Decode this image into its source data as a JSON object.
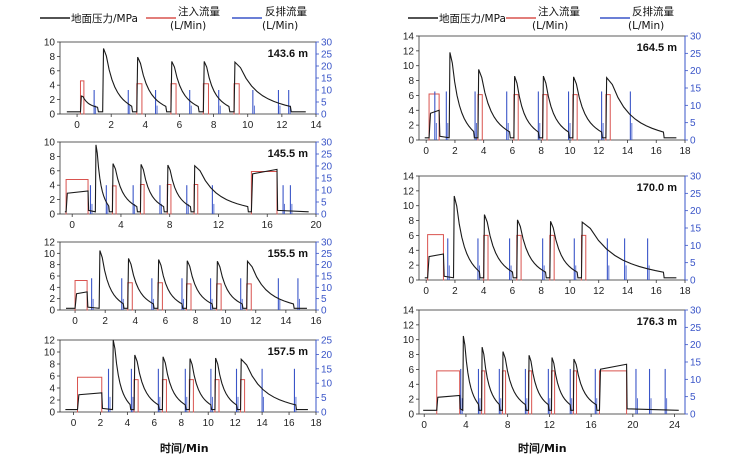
{
  "legend": {
    "pressure": "地面压力/MPa",
    "injection_line1": "注入流量",
    "injection_line2": "(L/Min)",
    "backflow_line1": "反排流量",
    "backflow_line2": "(L/Min)"
  },
  "colors": {
    "pressure": "#1a1a1a",
    "injection": "#d9534f",
    "backflow": "#3a55c8"
  },
  "xlabel": "时间/Min",
  "chart_data": [
    {
      "type": "line",
      "label": "143.6 m",
      "xlim": [
        -1,
        14
      ],
      "xticks": [
        0,
        2,
        4,
        6,
        8,
        10,
        12,
        14
      ],
      "ylim_left": [
        0,
        10
      ],
      "yticks_left": [
        0,
        2,
        4,
        6,
        8,
        10
      ],
      "ylim_right": [
        0,
        30
      ],
      "yticks_right": [
        0,
        5,
        10,
        15,
        20,
        25,
        30
      ],
      "pulses": [
        [
          0.2,
          0.4,
          2.5,
          4.6,
          14
        ],
        [
          1.5,
          1.8,
          9.1,
          0,
          0
        ],
        [
          3.5,
          3.8,
          7.9,
          4.2,
          13
        ],
        [
          5.5,
          5.8,
          7.3,
          4.2,
          13
        ],
        [
          7.4,
          7.7,
          7.3,
          4.2,
          13
        ],
        [
          9.2,
          9.5,
          7.2,
          4.2,
          13
        ]
      ],
      "base_pressure": 0.3,
      "flush": [
        1.0,
        3.0,
        4.6,
        6.6,
        8.3,
        10.3,
        11.8,
        12.4
      ],
      "flush_h": 10
    },
    {
      "type": "line",
      "label": "145.5 m",
      "xlim": [
        -1,
        20
      ],
      "xticks": [
        0,
        4,
        8,
        12,
        16,
        20
      ],
      "ylim_left": [
        0,
        10
      ],
      "yticks_left": [
        0,
        2,
        4,
        6,
        8,
        10
      ],
      "ylim_right": [
        0,
        30
      ],
      "yticks_right": [
        0,
        5,
        10,
        15,
        20,
        25,
        30
      ],
      "pulses": [
        [
          -0.5,
          1.3,
          3.2,
          4.8,
          14
        ],
        [
          1.9,
          2.2,
          9.6,
          0,
          0
        ],
        [
          3.3,
          3.6,
          7.0,
          3.9,
          12
        ],
        [
          5.6,
          5.9,
          6.9,
          4.1,
          12
        ],
        [
          7.8,
          8.1,
          6.8,
          4.1,
          12
        ],
        [
          10.0,
          10.3,
          6.7,
          4.1,
          12
        ],
        [
          14.7,
          16.8,
          6.2,
          5.9,
          18
        ]
      ],
      "base_pressure": 0.3,
      "flush": [
        1.5,
        2.8,
        5.0,
        7.2,
        9.4,
        11.5,
        17.3,
        17.9
      ],
      "flush_h": 12
    },
    {
      "type": "line",
      "label": "155.5 m",
      "xlim": [
        -1,
        16
      ],
      "xticks": [
        0,
        2,
        4,
        6,
        8,
        10,
        12,
        14,
        16
      ],
      "ylim_left": [
        0,
        12
      ],
      "yticks_left": [
        0,
        2,
        4,
        6,
        8,
        10,
        12
      ],
      "ylim_right": [
        0,
        30
      ],
      "yticks_right": [
        0,
        5,
        10,
        15,
        20,
        25,
        30
      ],
      "pulses": [
        [
          0.0,
          0.8,
          3.2,
          5.2,
          14
        ],
        [
          1.6,
          1.9,
          10.5,
          0,
          0
        ],
        [
          3.5,
          3.8,
          9.1,
          4.8,
          13
        ],
        [
          5.5,
          5.8,
          8.9,
          4.8,
          13
        ],
        [
          7.4,
          7.7,
          8.7,
          4.6,
          13
        ],
        [
          9.4,
          9.7,
          8.6,
          4.6,
          13
        ],
        [
          11.4,
          11.7,
          8.6,
          4.6,
          13
        ]
      ],
      "base_pressure": 0.3,
      "flush": [
        1.1,
        3.1,
        5.1,
        7.1,
        9.0,
        11.0,
        13.5,
        14.8
      ],
      "flush_h": 14
    },
    {
      "type": "line",
      "label": "157.5 m",
      "xlim": [
        -1,
        18
      ],
      "xticks": [
        0,
        2,
        4,
        6,
        8,
        10,
        12,
        14,
        16,
        18
      ],
      "ylim_left": [
        0,
        12
      ],
      "yticks_left": [
        0,
        2,
        4,
        6,
        8,
        10,
        12
      ],
      "ylim_right": [
        0,
        25
      ],
      "yticks_right": [
        0,
        5,
        10,
        15,
        20,
        25
      ],
      "pulses": [
        [
          0.3,
          2.1,
          3.2,
          5.8,
          15
        ],
        [
          2.9,
          3.2,
          12.0,
          0,
          0
        ],
        [
          4.5,
          4.8,
          9.5,
          5.4,
          14
        ],
        [
          6.6,
          6.9,
          9.2,
          5.4,
          14
        ],
        [
          8.6,
          8.9,
          8.9,
          5.4,
          14
        ],
        [
          10.5,
          10.8,
          9.0,
          5.4,
          14
        ],
        [
          12.4,
          12.7,
          8.8,
          5.4,
          14
        ]
      ],
      "base_pressure": 0.4,
      "flush": [
        2.6,
        4.3,
        6.3,
        8.3,
        10.2,
        12.1,
        14.0,
        16.4
      ],
      "flush_h": 15
    },
    {
      "type": "line",
      "label": "164.5 m",
      "xlim": [
        -0.5,
        18
      ],
      "xticks": [
        0,
        2,
        4,
        6,
        8,
        10,
        12,
        14,
        16,
        18
      ],
      "ylim_left": [
        0,
        14
      ],
      "yticks_left": [
        0,
        2,
        4,
        6,
        8,
        10,
        12,
        14
      ],
      "ylim_right": [
        0,
        30
      ],
      "yticks_right": [
        0,
        5,
        10,
        15,
        20,
        25,
        30
      ],
      "pulses": [
        [
          0.2,
          0.9,
          4.0,
          6.2,
          15
        ],
        [
          1.6,
          1.9,
          11.8,
          0,
          0
        ],
        [
          3.6,
          3.9,
          9.5,
          6.1,
          14
        ],
        [
          6.1,
          6.4,
          8.6,
          6.1,
          14
        ],
        [
          8.1,
          8.4,
          8.6,
          6.1,
          14
        ],
        [
          10.2,
          10.5,
          8.5,
          6.1,
          14
        ],
        [
          12.5,
          12.8,
          8.4,
          6.1,
          14
        ]
      ],
      "base_pressure": 0.3,
      "flush": [
        0.6,
        1.4,
        3.4,
        5.6,
        7.8,
        9.9,
        12.2,
        14.2
      ],
      "flush_h": 14
    },
    {
      "type": "line",
      "label": "170.0 m",
      "xlim": [
        -0.5,
        18
      ],
      "xticks": [
        0,
        2,
        4,
        6,
        8,
        10,
        12,
        14,
        16,
        18
      ],
      "ylim_left": [
        0,
        14
      ],
      "yticks_left": [
        0,
        2,
        4,
        6,
        8,
        10,
        12,
        14
      ],
      "ylim_right": [
        0,
        30
      ],
      "yticks_right": [
        0,
        5,
        10,
        15,
        20,
        25,
        30
      ],
      "pulses": [
        [
          0.1,
          1.2,
          3.5,
          6.1,
          15
        ],
        [
          1.9,
          2.2,
          11.3,
          0,
          0
        ],
        [
          4.0,
          4.3,
          8.8,
          6.0,
          14
        ],
        [
          6.3,
          6.6,
          8.1,
          6.0,
          14
        ],
        [
          8.6,
          8.9,
          7.9,
          6.0,
          14
        ],
        [
          10.8,
          11.1,
          7.8,
          6.0,
          14
        ]
      ],
      "base_pressure": 0.3,
      "flush": [
        1.5,
        3.6,
        5.8,
        8.1,
        10.3,
        12.6,
        13.8,
        15.4
      ],
      "flush_h": 12
    },
    {
      "type": "line",
      "label": "176.3 m",
      "xlim": [
        -0.5,
        25
      ],
      "xticks": [
        0,
        4,
        8,
        12,
        16,
        20,
        24
      ],
      "ylim_left": [
        0,
        14
      ],
      "yticks_left": [
        0,
        2,
        4,
        6,
        8,
        10,
        12,
        14
      ],
      "ylim_right": [
        0,
        30
      ],
      "yticks_right": [
        0,
        5,
        10,
        15,
        20,
        25,
        30
      ],
      "pulses": [
        [
          1.2,
          3.4,
          2.5,
          5.8,
          14
        ],
        [
          3.7,
          4.0,
          10.5,
          0,
          0
        ],
        [
          5.5,
          5.8,
          9.0,
          5.8,
          14
        ],
        [
          7.5,
          7.8,
          8.4,
          5.8,
          14
        ],
        [
          10.0,
          10.3,
          7.9,
          5.8,
          14
        ],
        [
          12.2,
          12.5,
          7.6,
          5.8,
          14
        ],
        [
          14.3,
          14.6,
          7.4,
          5.8,
          14
        ],
        [
          16.8,
          19.4,
          6.7,
          5.8,
          16
        ]
      ],
      "base_pressure": 0.5,
      "flush": [
        3.5,
        5.2,
        7.2,
        9.7,
        11.9,
        14.0,
        16.4,
        20.3,
        21.6,
        23.1
      ],
      "flush_h": 13
    }
  ]
}
